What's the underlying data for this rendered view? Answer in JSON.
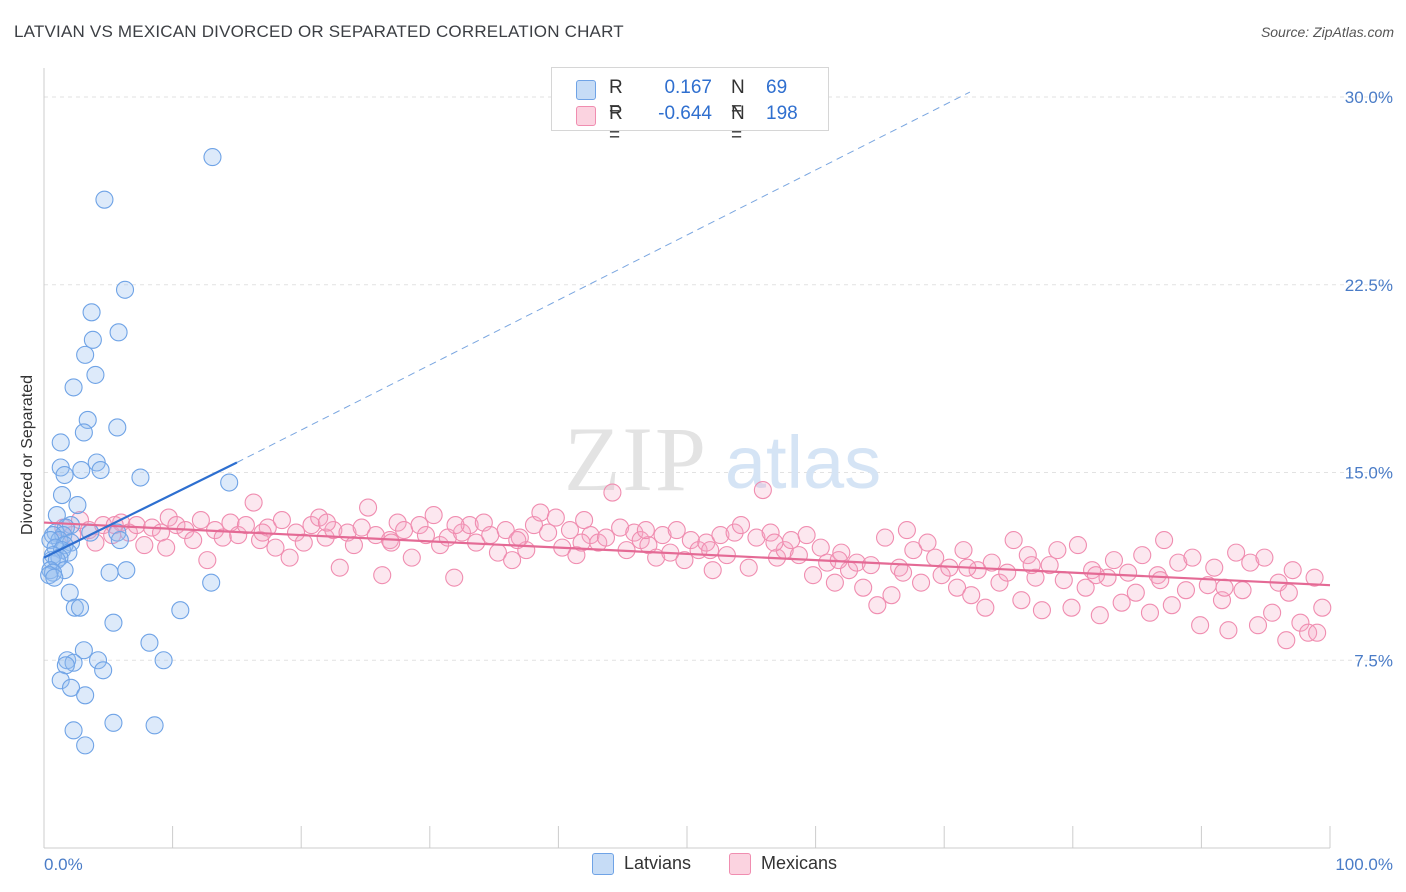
{
  "header": {
    "title": "LATVIAN VS MEXICAN DIVORCED OR SEPARATED CORRELATION CHART",
    "source": "Source: ZipAtlas.com"
  },
  "watermark": {
    "zip": "ZIP",
    "atlas": "atlas"
  },
  "legend": {
    "rows": [
      {
        "r_label": "R =",
        "r_value": "0.167",
        "n_label": "N =",
        "n_value": "69",
        "color": "#9fc3ef"
      },
      {
        "r_label": "R =",
        "r_value": "-0.644",
        "n_label": "N =",
        "n_value": "198",
        "color": "#f4b3c8"
      }
    ]
  },
  "bottom_legend": {
    "latvians": "Latvians",
    "mexicans": "Mexicans"
  },
  "chart_data": {
    "type": "scatter",
    "title": "LATVIAN VS MEXICAN DIVORCED OR SEPARATED CORRELATION CHART",
    "xlabel": "",
    "ylabel": "Divorced or Separated",
    "xlim": [
      0,
      100
    ],
    "ylim": [
      0,
      31
    ],
    "x_tick_labels": [
      "0.0%",
      "100.0%"
    ],
    "y_ticks": [
      7.5,
      15.0,
      22.5,
      30.0
    ],
    "y_tick_labels": [
      "7.5%",
      "15.0%",
      "22.5%",
      "30.0%"
    ],
    "grid": "horizontal dashed",
    "legend_position": "top-center",
    "colors": {
      "latvians": "#6fa3e6",
      "latvians_line": "#2d6fd0",
      "mexicans": "#f08db0",
      "mexicans_line": "#e46a95"
    },
    "series": [
      {
        "name": "Latvians",
        "trend": {
          "x": [
            0,
            15
          ],
          "y": [
            11.6,
            15.4
          ],
          "extended_to": [
            72,
            30.2
          ]
        },
        "points": [
          [
            13.1,
            27.6
          ],
          [
            4.7,
            25.9
          ],
          [
            6.3,
            22.3
          ],
          [
            3.7,
            21.4
          ],
          [
            5.8,
            20.6
          ],
          [
            3.8,
            20.3
          ],
          [
            3.2,
            19.7
          ],
          [
            4.0,
            18.9
          ],
          [
            2.3,
            18.4
          ],
          [
            3.4,
            17.1
          ],
          [
            5.7,
            16.8
          ],
          [
            3.1,
            16.6
          ],
          [
            1.3,
            16.2
          ],
          [
            4.1,
            15.4
          ],
          [
            1.3,
            15.2
          ],
          [
            2.9,
            15.1
          ],
          [
            4.4,
            15.1
          ],
          [
            1.6,
            14.9
          ],
          [
            7.5,
            14.8
          ],
          [
            14.4,
            14.6
          ],
          [
            1.4,
            14.1
          ],
          [
            2.6,
            13.7
          ],
          [
            1.0,
            13.3
          ],
          [
            2.1,
            12.9
          ],
          [
            1.7,
            12.8
          ],
          [
            0.9,
            12.6
          ],
          [
            1.5,
            12.5
          ],
          [
            3.6,
            12.6
          ],
          [
            5.7,
            12.6
          ],
          [
            0.7,
            12.5
          ],
          [
            1.2,
            12.3
          ],
          [
            2.1,
            12.2
          ],
          [
            5.9,
            12.3
          ],
          [
            0.5,
            12.3
          ],
          [
            1.6,
            12.1
          ],
          [
            0.9,
            12.0
          ],
          [
            1.4,
            11.9
          ],
          [
            1.9,
            11.8
          ],
          [
            0.7,
            11.7
          ],
          [
            1.2,
            11.6
          ],
          [
            0.6,
            11.5
          ],
          [
            1.0,
            11.5
          ],
          [
            0.5,
            11.1
          ],
          [
            1.6,
            11.1
          ],
          [
            0.7,
            11.0
          ],
          [
            0.4,
            10.9
          ],
          [
            5.1,
            11.0
          ],
          [
            6.4,
            11.1
          ],
          [
            0.8,
            10.8
          ],
          [
            13.0,
            10.6
          ],
          [
            2.0,
            10.2
          ],
          [
            2.4,
            9.6
          ],
          [
            2.8,
            9.6
          ],
          [
            10.6,
            9.5
          ],
          [
            5.4,
            9.0
          ],
          [
            8.2,
            8.2
          ],
          [
            3.1,
            7.9
          ],
          [
            1.8,
            7.5
          ],
          [
            4.2,
            7.5
          ],
          [
            9.3,
            7.5
          ],
          [
            2.3,
            7.4
          ],
          [
            1.7,
            7.3
          ],
          [
            4.6,
            7.1
          ],
          [
            1.3,
            6.7
          ],
          [
            2.1,
            6.4
          ],
          [
            3.2,
            6.1
          ],
          [
            5.4,
            5.0
          ],
          [
            8.6,
            4.9
          ],
          [
            2.3,
            4.7
          ],
          [
            3.2,
            4.1
          ]
        ]
      },
      {
        "name": "Mexicans",
        "trend": {
          "x": [
            0,
            100
          ],
          "y": [
            13.0,
            10.5
          ]
        },
        "points": [
          [
            1.5,
            12.8
          ],
          [
            2.2,
            12.5
          ],
          [
            2.8,
            13.1
          ],
          [
            3.5,
            12.7
          ],
          [
            4.0,
            12.2
          ],
          [
            4.6,
            12.9
          ],
          [
            5.3,
            12.5
          ],
          [
            6.0,
            13.0
          ],
          [
            6.6,
            12.6
          ],
          [
            7.2,
            12.9
          ],
          [
            7.8,
            12.1
          ],
          [
            8.4,
            12.8
          ],
          [
            9.1,
            12.6
          ],
          [
            9.7,
            13.2
          ],
          [
            10.3,
            12.9
          ],
          [
            11.0,
            12.7
          ],
          [
            11.6,
            12.3
          ],
          [
            12.2,
            13.1
          ],
          [
            12.7,
            11.5
          ],
          [
            13.3,
            12.7
          ],
          [
            13.9,
            12.4
          ],
          [
            14.5,
            13.0
          ],
          [
            15.1,
            12.5
          ],
          [
            15.7,
            12.9
          ],
          [
            16.3,
            13.8
          ],
          [
            16.8,
            12.3
          ],
          [
            17.4,
            12.8
          ],
          [
            18.0,
            12.0
          ],
          [
            18.5,
            13.1
          ],
          [
            19.1,
            11.6
          ],
          [
            19.6,
            12.6
          ],
          [
            20.2,
            12.2
          ],
          [
            20.8,
            12.9
          ],
          [
            21.4,
            13.2
          ],
          [
            21.9,
            12.4
          ],
          [
            22.5,
            12.7
          ],
          [
            23.0,
            11.2
          ],
          [
            23.6,
            12.6
          ],
          [
            24.1,
            12.1
          ],
          [
            24.7,
            12.8
          ],
          [
            25.2,
            13.6
          ],
          [
            25.8,
            12.5
          ],
          [
            26.3,
            10.9
          ],
          [
            26.9,
            12.3
          ],
          [
            27.5,
            13.0
          ],
          [
            28.0,
            12.7
          ],
          [
            28.6,
            11.6
          ],
          [
            29.2,
            12.9
          ],
          [
            29.7,
            12.5
          ],
          [
            30.3,
            13.3
          ],
          [
            30.8,
            12.1
          ],
          [
            31.4,
            12.4
          ],
          [
            31.9,
            10.8
          ],
          [
            32.5,
            12.6
          ],
          [
            33.1,
            12.9
          ],
          [
            33.6,
            12.2
          ],
          [
            34.2,
            13.0
          ],
          [
            34.7,
            12.5
          ],
          [
            35.3,
            11.8
          ],
          [
            35.9,
            12.7
          ],
          [
            36.4,
            11.5
          ],
          [
            37.0,
            12.4
          ],
          [
            37.5,
            11.9
          ],
          [
            38.1,
            12.9
          ],
          [
            38.6,
            13.4
          ],
          [
            39.2,
            12.6
          ],
          [
            39.8,
            13.2
          ],
          [
            40.3,
            12.0
          ],
          [
            40.9,
            12.7
          ],
          [
            41.4,
            11.7
          ],
          [
            42.0,
            13.1
          ],
          [
            42.5,
            12.5
          ],
          [
            43.1,
            12.2
          ],
          [
            43.7,
            12.4
          ],
          [
            44.2,
            14.2
          ],
          [
            44.8,
            12.8
          ],
          [
            45.3,
            11.9
          ],
          [
            45.9,
            12.6
          ],
          [
            46.4,
            12.3
          ],
          [
            47.0,
            12.1
          ],
          [
            47.6,
            11.6
          ],
          [
            48.1,
            12.5
          ],
          [
            48.7,
            11.8
          ],
          [
            49.2,
            12.7
          ],
          [
            49.8,
            11.5
          ],
          [
            50.3,
            12.3
          ],
          [
            50.9,
            11.9
          ],
          [
            51.5,
            12.2
          ],
          [
            52.0,
            11.1
          ],
          [
            52.6,
            12.5
          ],
          [
            53.1,
            11.7
          ],
          [
            53.7,
            12.6
          ],
          [
            54.2,
            12.9
          ],
          [
            54.8,
            11.2
          ],
          [
            55.4,
            12.4
          ],
          [
            55.9,
            14.3
          ],
          [
            56.5,
            12.6
          ],
          [
            57.0,
            11.6
          ],
          [
            57.6,
            11.9
          ],
          [
            58.1,
            12.3
          ],
          [
            58.7,
            11.7
          ],
          [
            59.3,
            12.5
          ],
          [
            59.8,
            10.9
          ],
          [
            60.4,
            12.0
          ],
          [
            60.9,
            11.4
          ],
          [
            61.5,
            10.6
          ],
          [
            62.0,
            11.8
          ],
          [
            62.6,
            11.1
          ],
          [
            63.2,
            11.4
          ],
          [
            63.7,
            10.4
          ],
          [
            64.3,
            11.3
          ],
          [
            64.8,
            9.7
          ],
          [
            65.4,
            12.4
          ],
          [
            65.9,
            10.1
          ],
          [
            66.5,
            11.2
          ],
          [
            67.1,
            12.7
          ],
          [
            67.6,
            11.9
          ],
          [
            68.2,
            10.6
          ],
          [
            68.7,
            12.2
          ],
          [
            69.3,
            11.6
          ],
          [
            69.8,
            10.9
          ],
          [
            70.4,
            11.2
          ],
          [
            71.0,
            10.4
          ],
          [
            71.5,
            11.9
          ],
          [
            72.1,
            10.1
          ],
          [
            72.6,
            11.1
          ],
          [
            73.2,
            9.6
          ],
          [
            73.7,
            11.4
          ],
          [
            74.3,
            10.6
          ],
          [
            74.9,
            11.0
          ],
          [
            75.4,
            12.3
          ],
          [
            76.0,
            9.9
          ],
          [
            76.5,
            11.7
          ],
          [
            77.1,
            10.8
          ],
          [
            77.6,
            9.5
          ],
          [
            78.2,
            11.3
          ],
          [
            78.8,
            11.9
          ],
          [
            79.3,
            10.7
          ],
          [
            79.9,
            9.6
          ],
          [
            80.4,
            12.1
          ],
          [
            81.0,
            10.4
          ],
          [
            81.5,
            11.1
          ],
          [
            82.1,
            9.3
          ],
          [
            82.7,
            10.8
          ],
          [
            83.2,
            11.5
          ],
          [
            83.8,
            9.8
          ],
          [
            84.3,
            11.0
          ],
          [
            84.9,
            10.2
          ],
          [
            85.4,
            11.7
          ],
          [
            86.0,
            9.4
          ],
          [
            86.6,
            10.9
          ],
          [
            87.1,
            12.3
          ],
          [
            87.7,
            9.7
          ],
          [
            88.2,
            11.4
          ],
          [
            88.8,
            10.3
          ],
          [
            89.3,
            11.6
          ],
          [
            89.9,
            8.9
          ],
          [
            90.5,
            10.5
          ],
          [
            91.0,
            11.2
          ],
          [
            91.6,
            9.9
          ],
          [
            92.1,
            8.7
          ],
          [
            92.7,
            11.8
          ],
          [
            93.2,
            10.3
          ],
          [
            93.8,
            11.4
          ],
          [
            94.4,
            8.9
          ],
          [
            94.9,
            11.6
          ],
          [
            95.5,
            9.4
          ],
          [
            96.0,
            10.6
          ],
          [
            96.6,
            8.3
          ],
          [
            97.1,
            11.1
          ],
          [
            97.7,
            9.0
          ],
          [
            98.3,
            8.6
          ],
          [
            98.8,
            10.8
          ],
          [
            99.4,
            9.6
          ],
          [
            5.5,
            12.9
          ],
          [
            9.5,
            12.0
          ],
          [
            17.0,
            12.6
          ],
          [
            22.0,
            13.0
          ],
          [
            27.0,
            12.2
          ],
          [
            32.0,
            12.9
          ],
          [
            36.8,
            12.3
          ],
          [
            41.8,
            12.2
          ],
          [
            46.8,
            12.7
          ],
          [
            51.8,
            11.9
          ],
          [
            56.8,
            12.2
          ],
          [
            61.8,
            11.5
          ],
          [
            66.8,
            11.0
          ],
          [
            71.8,
            11.2
          ],
          [
            76.8,
            11.3
          ],
          [
            81.8,
            10.9
          ],
          [
            86.8,
            10.7
          ],
          [
            91.8,
            10.4
          ],
          [
            96.8,
            10.2
          ],
          [
            99.0,
            8.6
          ]
        ]
      }
    ]
  }
}
